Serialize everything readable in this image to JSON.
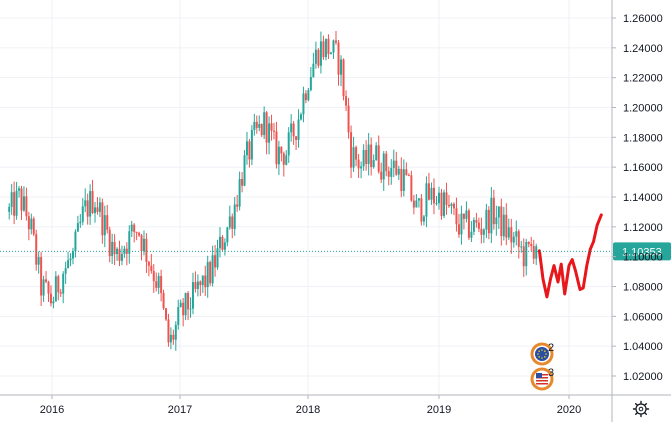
{
  "chart_data": {
    "type": "line",
    "title": "",
    "xlabel": "",
    "ylabel": "",
    "x_ticks": [
      "2016",
      "2017",
      "2018",
      "2019",
      "2020"
    ],
    "y_ticks": [
      "1.26000",
      "1.24000",
      "1.22000",
      "1.20000",
      "1.18000",
      "1.16000",
      "1.14000",
      "1.12000",
      "1.10000",
      "1.08000",
      "1.06000",
      "1.04000",
      "1.02000"
    ],
    "ylim": [
      1.005,
      1.268
    ],
    "grid": true,
    "current_price": "1.10353",
    "current_price_value": 1.10353,
    "series": [
      {
        "style": "candlestick",
        "color_up": "#26a69a",
        "color_down": "#ef5350",
        "x": [
          "2015-09-01",
          "2015-10-01",
          "2015-11-01",
          "2015-12-01",
          "2016-01-01",
          "2016-02-01",
          "2016-03-01",
          "2016-04-01",
          "2016-05-01",
          "2016-06-01",
          "2016-07-01",
          "2016-08-01",
          "2016-09-01",
          "2016-10-01",
          "2016-11-01",
          "2016-12-01",
          "2017-01-01",
          "2017-02-01",
          "2017-03-01",
          "2017-04-01",
          "2017-05-01",
          "2017-06-01",
          "2017-07-01",
          "2017-08-01",
          "2017-09-01",
          "2017-10-01",
          "2017-11-01",
          "2017-12-01",
          "2018-01-01",
          "2018-02-01",
          "2018-03-01",
          "2018-04-01",
          "2018-05-01",
          "2018-06-01",
          "2018-07-01",
          "2018-08-01",
          "2018-09-01",
          "2018-10-01",
          "2018-11-01",
          "2018-12-01",
          "2019-01-01",
          "2019-02-01",
          "2019-03-01",
          "2019-04-01",
          "2019-05-01",
          "2019-06-01",
          "2019-07-01",
          "2019-08-01",
          "2019-09-01",
          "2019-10-01"
        ],
        "values": [
          1.13,
          1.14,
          1.12,
          1.08,
          1.07,
          1.09,
          1.1,
          1.13,
          1.14,
          1.12,
          1.1,
          1.11,
          1.12,
          1.1,
          1.08,
          1.04,
          1.06,
          1.07,
          1.08,
          1.09,
          1.11,
          1.13,
          1.16,
          1.18,
          1.19,
          1.17,
          1.17,
          1.19,
          1.22,
          1.24,
          1.24,
          1.23,
          1.17,
          1.16,
          1.17,
          1.16,
          1.16,
          1.15,
          1.13,
          1.14,
          1.14,
          1.13,
          1.12,
          1.12,
          1.12,
          1.13,
          1.12,
          1.11,
          1.1,
          1.11
        ]
      },
      {
        "style": "projection",
        "color": "#e8171c",
        "x": [
          "2019-10-10",
          "2019-10-20",
          "2019-10-31",
          "2019-11-10",
          "2019-11-20",
          "2019-12-01",
          "2019-12-10",
          "2019-12-20",
          "2020-01-01",
          "2020-01-10",
          "2020-01-20",
          "2020-02-01",
          "2020-02-10",
          "2020-02-20",
          "2020-03-01",
          "2020-03-10",
          "2020-03-20",
          "2020-04-01"
        ],
        "values": [
          1.104,
          1.085,
          1.073,
          1.085,
          1.094,
          1.083,
          1.095,
          1.075,
          1.094,
          1.098,
          1.09,
          1.078,
          1.079,
          1.094,
          1.105,
          1.11,
          1.121,
          1.128
        ]
      }
    ]
  },
  "axis": {
    "settings_icon": "gear-icon"
  },
  "markers": [
    {
      "label": "2",
      "icon": "eu-flag-marker-icon",
      "color": "#e6892e"
    },
    {
      "label": "3",
      "icon": "us-flag-marker-icon",
      "color": "#e6892e"
    }
  ],
  "colors": {
    "grid": "#eef1f5",
    "axis_line": "#b2b5be",
    "price_line": "#26a69a",
    "price_tag_bg": "#26a69a"
  }
}
